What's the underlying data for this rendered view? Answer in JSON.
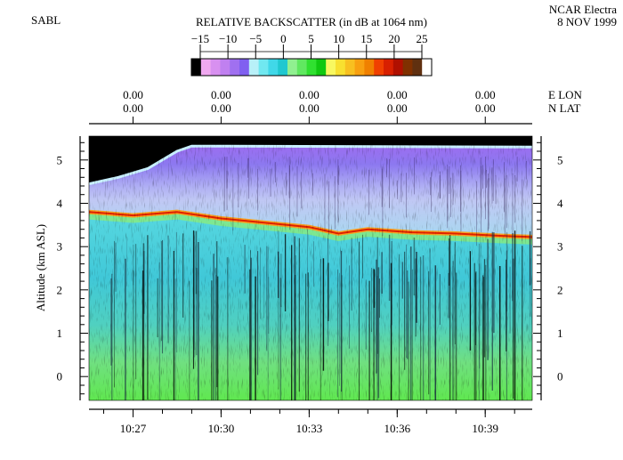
{
  "header": {
    "instrument": "SABL",
    "aircraft": "NCAR Electra",
    "date": "8 NOV 1999",
    "colorbar_title": "RELATIVE BACKSCATTER (in dB at 1064 nm)"
  },
  "colorbar": {
    "tick_labels": [
      "−15",
      "−10",
      "−5",
      "0",
      "5",
      "10",
      "15",
      "20",
      "25"
    ],
    "range": [
      -15,
      25
    ],
    "colors": [
      "#000000",
      "#f0a8f0",
      "#d890f0",
      "#c080f0",
      "#a070f0",
      "#8060f0",
      "#b8f0f8",
      "#70e8f0",
      "#40d8e8",
      "#20c8d0",
      "#90f090",
      "#60e860",
      "#30e030",
      "#10c810",
      "#f8f860",
      "#f8e030",
      "#f8c020",
      "#f8a010",
      "#f08000",
      "#f04000",
      "#d82000",
      "#b01000",
      "#803000",
      "#603010",
      "#ffffff"
    ]
  },
  "position_axis": {
    "lon_label": "E LON",
    "lat_label": "N LAT",
    "lon_values": [
      "0.00",
      "0.00",
      "0.00",
      "0.00",
      "0.00"
    ],
    "lat_values": [
      "0.00",
      "0.00",
      "0.00",
      "0.00",
      "0.00"
    ]
  },
  "chart_data": {
    "type": "heatmap",
    "title": "RELATIVE BACKSCATTER (in dB at 1064 nm)",
    "ylabel": "Altitude (km ASL)",
    "xlabel": "",
    "x_tick_labels": [
      "10:27",
      "10:30",
      "10:33",
      "10:36",
      "10:39"
    ],
    "y_tick_labels": [
      "0",
      "1",
      "2",
      "3",
      "4",
      "5"
    ],
    "y_ticks": [
      0,
      1,
      2,
      3,
      4,
      5
    ],
    "ylim": [
      -0.55,
      5.55
    ],
    "xlim_minutes": [
      625.5,
      640.6
    ],
    "x_tick_minutes": [
      627,
      630,
      633,
      636,
      639
    ],
    "cloud_top_km": [
      [
        625.5,
        3.8
      ],
      [
        627.0,
        3.72
      ],
      [
        628.5,
        3.8
      ],
      [
        630.0,
        3.65
      ],
      [
        631.5,
        3.55
      ],
      [
        633.0,
        3.45
      ],
      [
        634.0,
        3.3
      ],
      [
        635.0,
        3.4
      ],
      [
        636.5,
        3.33
      ],
      [
        638.0,
        3.3
      ],
      [
        639.5,
        3.25
      ],
      [
        640.6,
        3.22
      ]
    ],
    "data_top_km": [
      [
        625.5,
        4.45
      ],
      [
        626.5,
        4.6
      ],
      [
        627.5,
        4.8
      ],
      [
        628.5,
        5.2
      ],
      [
        629.0,
        5.32
      ],
      [
        640.6,
        5.3
      ]
    ]
  }
}
